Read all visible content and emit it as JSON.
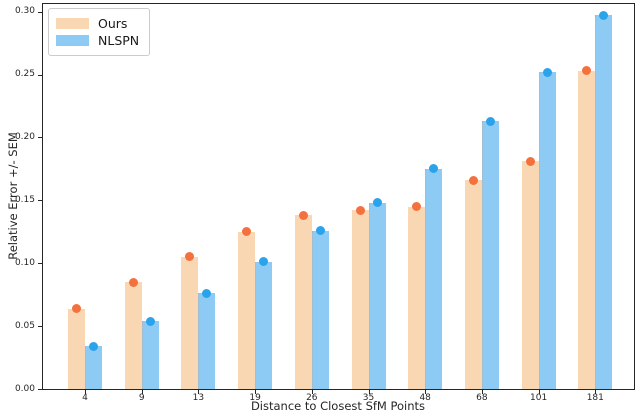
{
  "chart_data": {
    "type": "bar",
    "title": "",
    "xlabel": "Distance to Closest SfM Points",
    "ylabel": "Relative Error +/- SEM",
    "categories": [
      "4",
      "9",
      "13",
      "19",
      "26",
      "35",
      "48",
      "68",
      "101",
      "181"
    ],
    "series": [
      {
        "name": "Ours",
        "bar_color": "#FAD7B3",
        "marker_color": "#F4703C",
        "values": [
          0.064,
          0.085,
          0.105,
          0.125,
          0.138,
          0.142,
          0.145,
          0.166,
          0.181,
          0.253
        ]
      },
      {
        "name": "NLSPN",
        "bar_color": "#8DCBF4",
        "marker_color": "#2AA3EB",
        "values": [
          0.034,
          0.054,
          0.076,
          0.101,
          0.126,
          0.148,
          0.175,
          0.213,
          0.252,
          0.297
        ]
      }
    ],
    "yticks": [
      "0.00",
      "0.05",
      "0.10",
      "0.15",
      "0.20",
      "0.25",
      "0.30"
    ],
    "ylim": [
      0,
      0.3069
    ],
    "grid": false,
    "legend_position": "upper left",
    "error_style": "dot markers at bar tops (+/- SEM)"
  }
}
